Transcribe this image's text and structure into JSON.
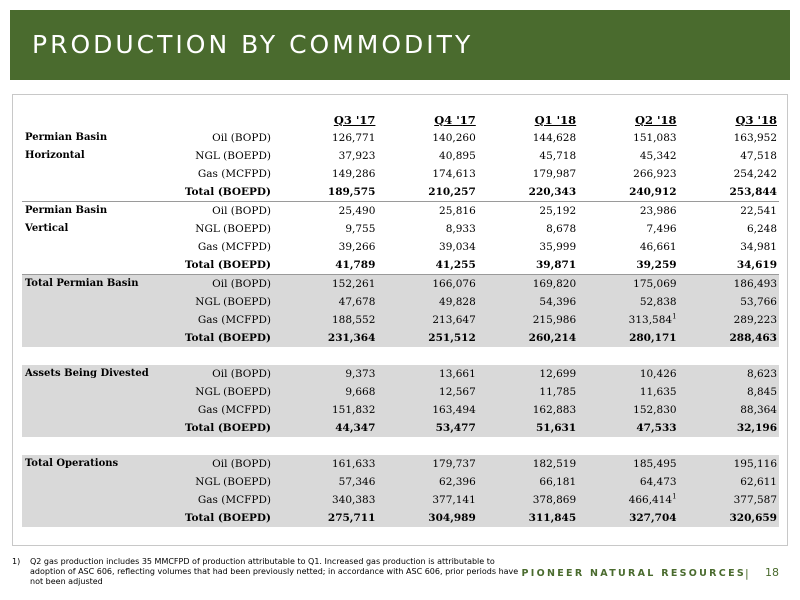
{
  "title": "PRODUCTION BY COMMODITY",
  "columns": [
    "Q3 '17",
    "Q4 '17",
    "Q1 '18",
    "Q2 '18",
    "Q3 '18"
  ],
  "sections": [
    {
      "name_line1": "Permian Basin",
      "name_line2": "Horizontal",
      "rows": [
        {
          "metric": "Oil (BOPD)",
          "values": [
            "126,771",
            "140,260",
            "144,628",
            "151,083",
            "163,952"
          ]
        },
        {
          "metric": "NGL (BOEPD)",
          "values": [
            "37,923",
            "40,895",
            "45,718",
            "45,342",
            "47,518"
          ]
        },
        {
          "metric": "Gas (MCFPD)",
          "values": [
            "149,286",
            "174,613",
            "179,987",
            "266,923",
            "254,242"
          ]
        },
        {
          "metric": "Total (BOEPD)",
          "values": [
            "189,575",
            "210,257",
            "220,343",
            "240,912",
            "253,844"
          ]
        }
      ]
    },
    {
      "name_line1": "Permian Basin",
      "name_line2": "Vertical",
      "rows": [
        {
          "metric": "Oil (BOPD)",
          "values": [
            "25,490",
            "25,816",
            "25,192",
            "23,986",
            "22,541"
          ]
        },
        {
          "metric": "NGL (BOEPD)",
          "values": [
            "9,755",
            "8,933",
            "8,678",
            "7,496",
            "6,248"
          ]
        },
        {
          "metric": "Gas (MCFPD)",
          "values": [
            "39,266",
            "39,034",
            "35,999",
            "46,661",
            "34,981"
          ]
        },
        {
          "metric": "Total (BOEPD)",
          "values": [
            "41,789",
            "41,255",
            "39,871",
            "39,259",
            "34,619"
          ]
        }
      ]
    },
    {
      "name_line1": "Total Permian Basin",
      "rows": [
        {
          "metric": "Oil (BOPD)",
          "values": [
            "152,261",
            "166,076",
            "169,820",
            "175,069",
            "186,493"
          ]
        },
        {
          "metric": "NGL (BOEPD)",
          "values": [
            "47,678",
            "49,828",
            "54,396",
            "52,838",
            "53,766"
          ]
        },
        {
          "metric": "Gas (MCFPD)",
          "values": [
            "188,552",
            "213,647",
            "215,986",
            "313,584",
            "289,223"
          ],
          "q2_note": "1"
        },
        {
          "metric": "Total (BOEPD)",
          "values": [
            "231,364",
            "251,512",
            "260,214",
            "280,171",
            "288,463"
          ]
        }
      ]
    },
    {
      "name_line1": "Assets Being Divested",
      "rows": [
        {
          "metric": "Oil (BOPD)",
          "values": [
            "9,373",
            "13,661",
            "12,699",
            "10,426",
            "8,623"
          ]
        },
        {
          "metric": "NGL (BOEPD)",
          "values": [
            "9,668",
            "12,567",
            "11,785",
            "11,635",
            "8,845"
          ]
        },
        {
          "metric": "Gas (MCFPD)",
          "values": [
            "151,832",
            "163,494",
            "162,883",
            "152,830",
            "88,364"
          ]
        },
        {
          "metric": "Total (BOEPD)",
          "values": [
            "44,347",
            "53,477",
            "51,631",
            "47,533",
            "32,196"
          ]
        }
      ]
    },
    {
      "name_line1": "Total Operations",
      "rows": [
        {
          "metric": "Oil (BOPD)",
          "values": [
            "161,633",
            "179,737",
            "182,519",
            "185,495",
            "195,116"
          ]
        },
        {
          "metric": "NGL (BOEPD)",
          "values": [
            "57,346",
            "62,396",
            "66,181",
            "64,473",
            "62,611"
          ]
        },
        {
          "metric": "Gas (MCFPD)",
          "values": [
            "340,383",
            "377,141",
            "378,869",
            "466,414",
            "377,587"
          ],
          "q2_note": "1"
        },
        {
          "metric": "Total (BOEPD)",
          "values": [
            "275,711",
            "304,989",
            "311,845",
            "327,704",
            "320,659"
          ]
        }
      ]
    }
  ],
  "footnote": {
    "marker": "1)",
    "text": "Q2 gas production includes 35 MMCFPD of production attributable to Q1.  Increased gas production is attributable to adoption of ASC 606, reflecting volumes that had been previously netted; in accordance with ASC 606, prior periods have not been adjusted"
  },
  "brand": "PIONEER NATURAL RESOURCES",
  "divider": "|",
  "page_number": "18"
}
